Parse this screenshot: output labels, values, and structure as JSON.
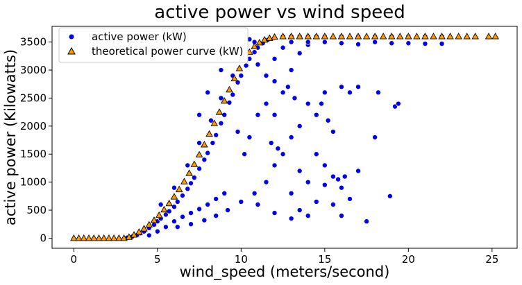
{
  "chart_data": {
    "type": "scatter",
    "title": "active power vs wind speed",
    "xlabel": "wind_speed (meters/second)",
    "ylabel": "active power (Kilowatts)",
    "xlim": [
      -1.3,
      26.5
    ],
    "ylim": [
      -180,
      3780
    ],
    "xticks": [
      0,
      5,
      10,
      15,
      20,
      25
    ],
    "yticks": [
      0,
      500,
      1000,
      1500,
      2000,
      2500,
      3000,
      3500
    ],
    "grid": false,
    "legend_position": "top-left",
    "series": [
      {
        "name": "active power (kW)",
        "marker": "circle",
        "color": "#0000ee",
        "edge_color": "#ffffff",
        "points": [
          [
            3.2,
            10
          ],
          [
            3.5,
            30
          ],
          [
            3.8,
            60
          ],
          [
            4.0,
            90
          ],
          [
            4.2,
            120
          ],
          [
            4.5,
            180
          ],
          [
            4.8,
            240
          ],
          [
            5.0,
            300
          ],
          [
            5.2,
            350
          ],
          [
            5.5,
            420
          ],
          [
            5.7,
            480
          ],
          [
            6.0,
            560
          ],
          [
            6.2,
            650
          ],
          [
            6.5,
            760
          ],
          [
            6.8,
            880
          ],
          [
            7.0,
            980
          ],
          [
            7.2,
            1080
          ],
          [
            7.5,
            1240
          ],
          [
            7.8,
            1400
          ],
          [
            8.0,
            1520
          ],
          [
            8.3,
            1700
          ],
          [
            8.5,
            1840
          ],
          [
            8.8,
            2050
          ],
          [
            9.0,
            2200
          ],
          [
            9.3,
            2420
          ],
          [
            9.5,
            2560
          ],
          [
            9.8,
            2780
          ],
          [
            10.0,
            2900
          ],
          [
            10.3,
            3080
          ],
          [
            10.5,
            3200
          ],
          [
            10.8,
            3320
          ],
          [
            11.0,
            3400
          ],
          [
            11.3,
            3480
          ],
          [
            11.6,
            3540
          ],
          [
            12.0,
            3580
          ],
          [
            12.5,
            3600
          ],
          [
            13.0,
            3600
          ],
          [
            13.5,
            3600
          ],
          [
            14.0,
            3600
          ],
          [
            14.5,
            3600
          ],
          [
            15.0,
            3600
          ],
          [
            16.0,
            3600
          ],
          [
            17.0,
            3600
          ],
          [
            18.0,
            3600
          ],
          [
            19.0,
            3600
          ],
          [
            20.0,
            3600
          ],
          [
            21.0,
            3600
          ],
          [
            22.0,
            3600
          ],
          [
            4.5,
            50
          ],
          [
            5.0,
            120
          ],
          [
            5.5,
            200
          ],
          [
            6.0,
            300
          ],
          [
            6.5,
            380
          ],
          [
            7.0,
            450
          ],
          [
            7.5,
            520
          ],
          [
            8.0,
            600
          ],
          [
            8.5,
            700
          ],
          [
            9.0,
            800
          ],
          [
            5.2,
            600
          ],
          [
            6.0,
            900
          ],
          [
            6.8,
            1300
          ],
          [
            7.5,
            1700
          ],
          [
            8.2,
            2100
          ],
          [
            8.8,
            2500
          ],
          [
            9.5,
            2900
          ],
          [
            10.2,
            3300
          ],
          [
            10.8,
            3500
          ],
          [
            6.2,
            200
          ],
          [
            7.0,
            250
          ],
          [
            7.8,
            320
          ],
          [
            8.5,
            400
          ],
          [
            9.2,
            500
          ],
          [
            10.0,
            650
          ],
          [
            10.8,
            800
          ],
          [
            11.5,
            1000
          ],
          [
            12.0,
            1300
          ],
          [
            7.5,
            2200
          ],
          [
            8.0,
            2600
          ],
          [
            8.8,
            3000
          ],
          [
            9.2,
            3300
          ],
          [
            9.8,
            3500
          ],
          [
            10.5,
            3550
          ],
          [
            11.0,
            3100
          ],
          [
            11.5,
            2900
          ],
          [
            12.0,
            2800
          ],
          [
            10.5,
            1800
          ],
          [
            11.0,
            2200
          ],
          [
            11.5,
            2400
          ],
          [
            12.0,
            2200
          ],
          [
            12.5,
            2600
          ],
          [
            13.0,
            3000
          ],
          [
            13.5,
            3300
          ],
          [
            14.0,
            3450
          ],
          [
            11.0,
            600
          ],
          [
            12.0,
            450
          ],
          [
            13.0,
            350
          ],
          [
            13.5,
            500
          ],
          [
            14.0,
            400
          ],
          [
            14.5,
            650
          ],
          [
            15.0,
            950
          ],
          [
            15.5,
            1100
          ],
          [
            16.0,
            900
          ],
          [
            12.5,
            1500
          ],
          [
            13.0,
            1800
          ],
          [
            13.5,
            2000
          ],
          [
            14.0,
            2400
          ],
          [
            14.5,
            2200
          ],
          [
            15.0,
            2600
          ],
          [
            15.5,
            1900
          ],
          [
            16.0,
            2700
          ],
          [
            16.5,
            2600
          ],
          [
            13.0,
            800
          ],
          [
            13.5,
            1200
          ],
          [
            14.0,
            1000
          ],
          [
            14.5,
            1500
          ],
          [
            15.0,
            1300
          ],
          [
            15.5,
            600
          ],
          [
            16.0,
            400
          ],
          [
            16.5,
            700
          ],
          [
            17.0,
            1200
          ],
          [
            17.0,
            2700
          ],
          [
            17.5,
            300
          ],
          [
            18.0,
            1800
          ],
          [
            18.2,
            2600
          ],
          [
            18.9,
            750
          ],
          [
            19.2,
            2350
          ],
          [
            19.4,
            2400
          ],
          [
            16.2,
            1100
          ],
          [
            15.8,
            1050
          ],
          [
            12.0,
            3200
          ],
          [
            12.5,
            3400
          ],
          [
            13.0,
            3500
          ],
          [
            14.0,
            3500
          ],
          [
            15.0,
            3500
          ],
          [
            16.0,
            3480
          ],
          [
            17.0,
            3460
          ],
          [
            18.0,
            3500
          ],
          [
            19.0,
            3480
          ],
          [
            20.0,
            3480
          ],
          [
            21.0,
            3470
          ],
          [
            22.0,
            3470
          ],
          [
            14.8,
            2400
          ],
          [
            15.2,
            2100
          ],
          [
            12.8,
            2700
          ],
          [
            13.2,
            2500
          ],
          [
            11.8,
            1700
          ],
          [
            12.2,
            1600
          ],
          [
            10.2,
            1500
          ],
          [
            9.8,
            1900
          ]
        ]
      },
      {
        "name": "theoretical power curve (kW)",
        "marker": "triangle",
        "color": "#ff9900",
        "edge_color": "#000000",
        "points": [
          [
            0.0,
            0
          ],
          [
            0.3,
            0
          ],
          [
            0.6,
            0
          ],
          [
            0.9,
            0
          ],
          [
            1.2,
            0
          ],
          [
            1.5,
            0
          ],
          [
            1.8,
            0
          ],
          [
            2.1,
            0
          ],
          [
            2.4,
            0
          ],
          [
            2.7,
            0
          ],
          [
            3.0,
            0
          ],
          [
            3.3,
            20
          ],
          [
            3.6,
            60
          ],
          [
            3.9,
            110
          ],
          [
            4.2,
            170
          ],
          [
            4.5,
            240
          ],
          [
            4.8,
            320
          ],
          [
            5.1,
            410
          ],
          [
            5.4,
            510
          ],
          [
            5.7,
            620
          ],
          [
            6.0,
            740
          ],
          [
            6.3,
            870
          ],
          [
            6.6,
            1010
          ],
          [
            6.9,
            1160
          ],
          [
            7.2,
            1320
          ],
          [
            7.5,
            1490
          ],
          [
            7.8,
            1670
          ],
          [
            8.1,
            1860
          ],
          [
            8.4,
            2050
          ],
          [
            8.7,
            2250
          ],
          [
            9.0,
            2450
          ],
          [
            9.3,
            2650
          ],
          [
            9.6,
            2850
          ],
          [
            9.9,
            3030
          ],
          [
            10.2,
            3190
          ],
          [
            10.5,
            3320
          ],
          [
            10.8,
            3420
          ],
          [
            11.1,
            3490
          ],
          [
            11.4,
            3540
          ],
          [
            11.7,
            3570
          ],
          [
            12.0,
            3590
          ],
          [
            12.5,
            3600
          ],
          [
            13.0,
            3600
          ],
          [
            13.5,
            3600
          ],
          [
            14.0,
            3600
          ],
          [
            14.5,
            3600
          ],
          [
            15.0,
            3600
          ],
          [
            15.5,
            3600
          ],
          [
            16.0,
            3600
          ],
          [
            16.5,
            3600
          ],
          [
            17.0,
            3600
          ],
          [
            17.5,
            3600
          ],
          [
            18.0,
            3600
          ],
          [
            18.5,
            3600
          ],
          [
            19.0,
            3600
          ],
          [
            19.5,
            3600
          ],
          [
            20.0,
            3600
          ],
          [
            20.5,
            3600
          ],
          [
            21.0,
            3600
          ],
          [
            21.5,
            3600
          ],
          [
            22.0,
            3600
          ],
          [
            22.5,
            3600
          ],
          [
            23.0,
            3600
          ],
          [
            23.5,
            3600
          ],
          [
            24.0,
            3600
          ],
          [
            24.8,
            3600
          ],
          [
            25.2,
            3600
          ]
        ]
      }
    ]
  }
}
